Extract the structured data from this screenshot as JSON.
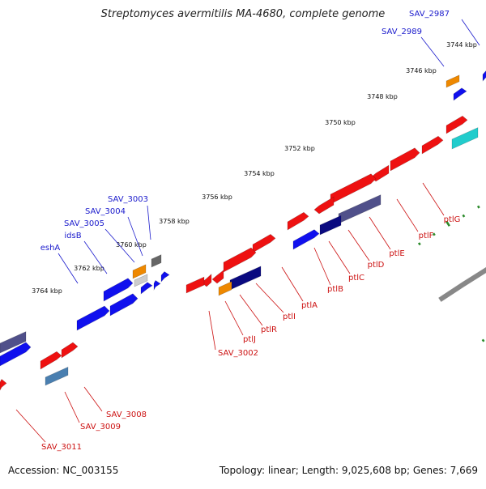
{
  "header": {
    "title": "Streptomyces avermitilis MA-4680, complete genome"
  },
  "footer": {
    "accession": "Accession: NC_003155",
    "summary": "Topology: linear; Length: 9,025,608 bp; Genes: 7,669"
  },
  "colors": {
    "red": "#ee1111",
    "blue": "#1010ee",
    "navy": "#0a0a80",
    "slate": "#50508a",
    "orange": "#ee8800",
    "cyan": "#22cccc",
    "steel": "#4a7fb0",
    "gray": "#666666",
    "backbone": "#888888",
    "dots": "#2a8a2a",
    "label_blue": "#1a1acc",
    "label_red": "#cc1111"
  },
  "ruler": {
    "unit": "kbp",
    "ticks": [
      {
        "kbp": 3744,
        "label": "3744 kbp"
      },
      {
        "kbp": 3746,
        "label": "3746 kbp"
      },
      {
        "kbp": 3748,
        "label": "3748 kbp"
      },
      {
        "kbp": 3750,
        "label": "3750 kbp"
      },
      {
        "kbp": 3752,
        "label": "3752 kbp"
      },
      {
        "kbp": 3754,
        "label": "3754 kbp"
      },
      {
        "kbp": 3756,
        "label": "3756 kbp"
      },
      {
        "kbp": 3758,
        "label": "3758 kbp"
      },
      {
        "kbp": 3760,
        "label": "3760 kbp"
      },
      {
        "kbp": 3762,
        "label": "3762 kbp"
      },
      {
        "kbp": 3764,
        "label": "3764 kbp"
      }
    ]
  },
  "upper_labels": [
    {
      "name": "SAV_2987"
    },
    {
      "name": "SAV_2989"
    },
    {
      "name": "SAV_3003"
    },
    {
      "name": "SAV_3004"
    },
    {
      "name": "SAV_3005"
    },
    {
      "name": "idsB"
    },
    {
      "name": "eshA"
    }
  ],
  "lower_labels": [
    {
      "name": "ptlG"
    },
    {
      "name": "ptlF"
    },
    {
      "name": "ptlE"
    },
    {
      "name": "ptlD"
    },
    {
      "name": "ptlC"
    },
    {
      "name": "ptlB"
    },
    {
      "name": "ptlA"
    },
    {
      "name": "ptlI"
    },
    {
      "name": "ptlR"
    },
    {
      "name": "ptlJ"
    },
    {
      "name": "SAV_3002"
    },
    {
      "name": "SAV_3008"
    },
    {
      "name": "SAV_3009"
    },
    {
      "name": "SAV_3011"
    }
  ]
}
